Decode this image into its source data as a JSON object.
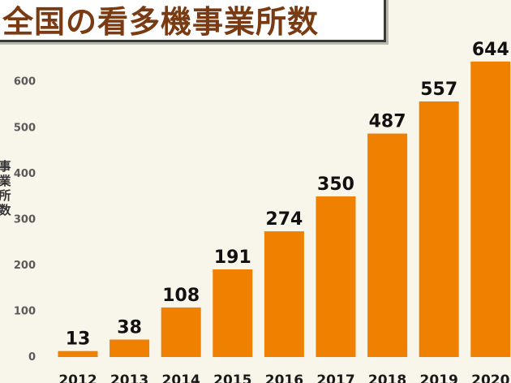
{
  "chart_data": {
    "type": "bar",
    "title": "全国の看多機事業所数",
    "ylabel": "事業所数",
    "xlabel": "",
    "categories": [
      "2012",
      "2013",
      "2014",
      "2015",
      "2016",
      "2017",
      "2018",
      "2019",
      "2020"
    ],
    "values": [
      13,
      38,
      108,
      191,
      274,
      350,
      487,
      557,
      644
    ],
    "ylim": [
      0,
      700
    ],
    "yticks": [
      0,
      100,
      200,
      300,
      400,
      500,
      600
    ],
    "bar_color": "#f08000",
    "grid": false,
    "legend": "none"
  }
}
